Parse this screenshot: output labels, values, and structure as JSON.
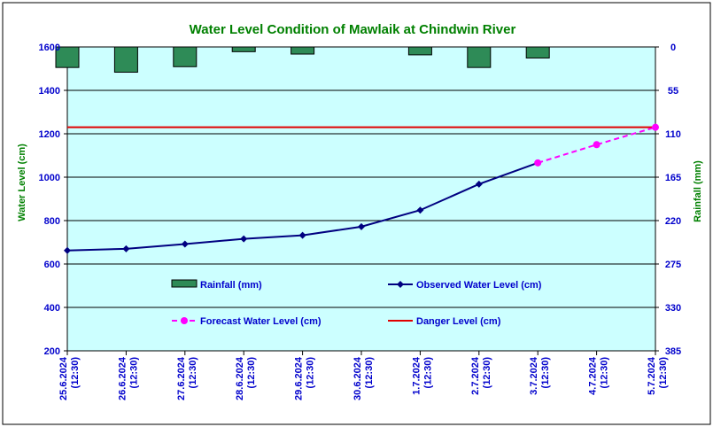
{
  "chart_data": {
    "type": "line",
    "title": "Water Level Condition of Mawlaik at Chindwin River",
    "ylabel": "Water Level (cm)",
    "y2label": "Rainfall (mm)",
    "ylim": [
      200,
      1600
    ],
    "yticks": [
      200,
      400,
      600,
      800,
      1000,
      1200,
      1400,
      1600
    ],
    "y2lim": [
      385,
      0
    ],
    "y2ticks": [
      0,
      55,
      110,
      165,
      220,
      275,
      330,
      385
    ],
    "categories": [
      [
        "25.6.2024",
        "(12:30)"
      ],
      [
        "26.6.2024",
        "(12:30)"
      ],
      [
        "27.6.2024",
        "(12:30)"
      ],
      [
        "28.6.2024",
        "(12:30)"
      ],
      [
        "29.6.2024",
        "(12:30)"
      ],
      [
        "30.6.2024",
        "(12:30)"
      ],
      [
        "1.7.2024",
        "(12:30)"
      ],
      [
        "2.7.2024",
        "(12:30)"
      ],
      [
        "3.7.2024",
        "(12:30)"
      ],
      [
        "4.7.2024",
        "(12:30)"
      ],
      [
        "5.7.2024",
        "(12:30)"
      ]
    ],
    "series": [
      {
        "name": "Rainfall (mm)",
        "kind": "bar",
        "axis": "right",
        "color": "#2e8b57",
        "values": [
          26,
          32,
          25,
          6,
          9,
          0,
          10,
          26,
          14,
          0,
          0
        ]
      },
      {
        "name": "Observed Water Level (cm)",
        "kind": "line",
        "axis": "left",
        "color": "#000080",
        "values": [
          662,
          670,
          692,
          716,
          732,
          772,
          848,
          968,
          1066,
          null,
          null
        ]
      },
      {
        "name": "Forecast Water Level (cm)",
        "kind": "dashed-line",
        "axis": "left",
        "color": "#ff00ff",
        "values": [
          null,
          null,
          null,
          null,
          null,
          null,
          null,
          null,
          1066,
          1150,
          1230
        ]
      },
      {
        "name": "Danger Level (cm)",
        "kind": "hline",
        "axis": "left",
        "color": "#e00000",
        "value": 1230
      }
    ],
    "grid": true,
    "legend_position": "inside-bottom",
    "colors": {
      "plot_background": "#ccffff",
      "tick_text": "#0000cc",
      "title_text": "#008000"
    }
  }
}
